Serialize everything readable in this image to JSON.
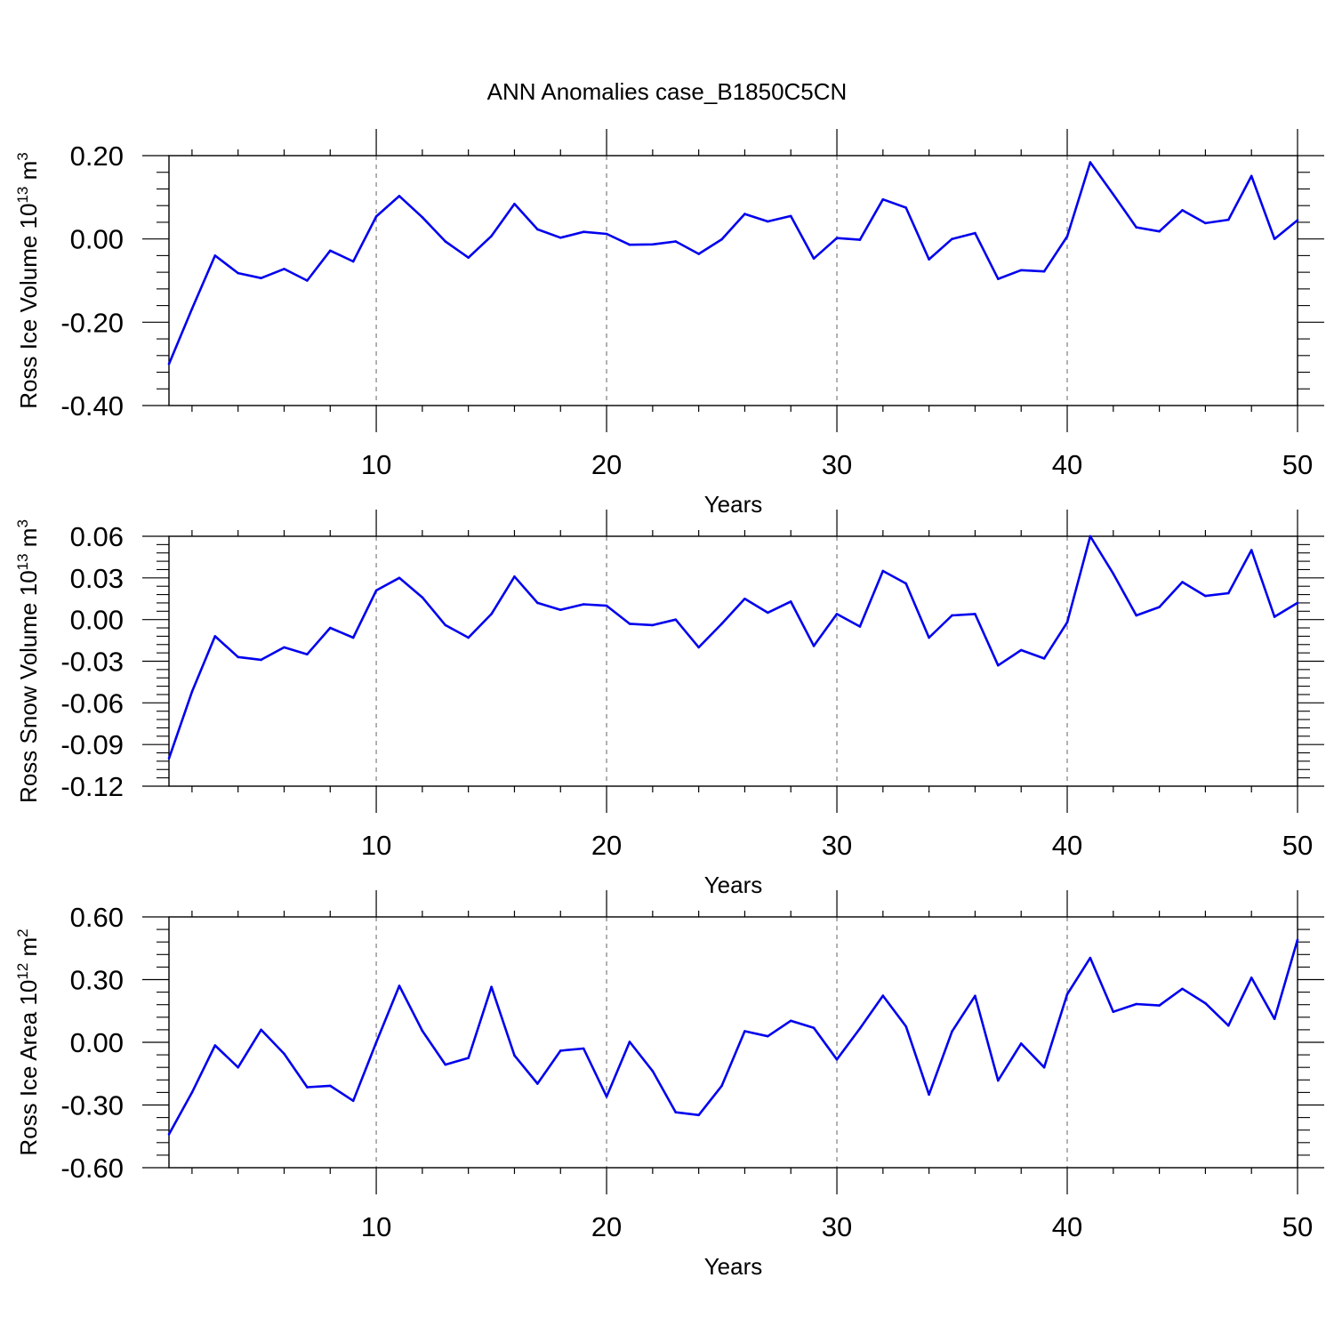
{
  "figure_title": "ANN Anomalies case_B1850C5CN",
  "line_color": "#0000ee",
  "chart_data": [
    {
      "type": "line",
      "ylabel_main": "Ross Ice Volume 10",
      "ylabel_exp": "13",
      "ylabel_unit": " m",
      "ylabel_unit_exp": "3",
      "xlabel": "Years",
      "xlim": [
        1,
        50
      ],
      "ylim": [
        -0.4,
        0.2
      ],
      "yticks": [
        -0.4,
        -0.2,
        0.0,
        0.2
      ],
      "ytick_labels": [
        "-0.40",
        "-0.20",
        "0.00",
        "0.20"
      ],
      "xticks": [
        10,
        20,
        30,
        40,
        50
      ],
      "xtick_labels": [
        "10",
        "20",
        "30",
        "40",
        "50"
      ],
      "grid": "dashed vertical lines at x=10,20,30,40",
      "x": [
        1,
        2,
        3,
        4,
        5,
        6,
        7,
        8,
        9,
        10,
        11,
        12,
        13,
        14,
        15,
        16,
        17,
        18,
        19,
        20,
        21,
        22,
        23,
        24,
        25,
        26,
        27,
        28,
        29,
        30,
        31,
        32,
        33,
        34,
        35,
        36,
        37,
        38,
        39,
        40,
        41,
        42,
        43,
        44,
        45,
        46,
        47,
        48,
        49,
        50
      ],
      "values": [
        -0.3,
        -0.168,
        -0.04,
        -0.082,
        -0.094,
        -0.072,
        -0.1,
        -0.028,
        -0.054,
        0.054,
        0.103,
        0.052,
        -0.006,
        -0.045,
        0.007,
        0.084,
        0.023,
        0.003,
        0.017,
        0.012,
        -0.014,
        -0.013,
        -0.006,
        -0.036,
        -0.001,
        0.06,
        0.042,
        0.055,
        -0.047,
        0.002,
        -0.002,
        0.095,
        0.075,
        -0.049,
        0.0,
        0.014,
        -0.096,
        -0.075,
        -0.078,
        0.006,
        0.184,
        0.107,
        0.028,
        0.018,
        0.069,
        0.038,
        0.046,
        0.151,
        0.0,
        0.045
      ]
    },
    {
      "type": "line",
      "ylabel_main": "Ross Snow Volume 10",
      "ylabel_exp": "13",
      "ylabel_unit": " m",
      "ylabel_unit_exp": "3",
      "xlabel": "Years",
      "xlim": [
        1,
        50
      ],
      "ylim": [
        -0.12,
        0.06
      ],
      "yticks": [
        -0.12,
        -0.09,
        -0.06,
        -0.03,
        0.0,
        0.03,
        0.06
      ],
      "ytick_labels": [
        "-0.12",
        "-0.09",
        "-0.06",
        "-0.03",
        "0.00",
        "0.03",
        "0.06"
      ],
      "xticks": [
        10,
        20,
        30,
        40,
        50
      ],
      "xtick_labels": [
        "10",
        "20",
        "30",
        "40",
        "50"
      ],
      "grid": "dashed vertical lines at x=10,20,30,40",
      "x": [
        1,
        2,
        3,
        4,
        5,
        6,
        7,
        8,
        9,
        10,
        11,
        12,
        13,
        14,
        15,
        16,
        17,
        18,
        19,
        20,
        21,
        22,
        23,
        24,
        25,
        26,
        27,
        28,
        29,
        30,
        31,
        32,
        33,
        34,
        35,
        36,
        37,
        38,
        39,
        40,
        41,
        42,
        43,
        44,
        45,
        46,
        47,
        48,
        49,
        50
      ],
      "values": [
        -0.1,
        -0.052,
        -0.012,
        -0.027,
        -0.029,
        -0.02,
        -0.025,
        -0.006,
        -0.013,
        0.021,
        0.03,
        0.016,
        -0.004,
        -0.013,
        0.004,
        0.031,
        0.012,
        0.007,
        0.011,
        0.01,
        -0.003,
        -0.004,
        0.0,
        -0.02,
        -0.003,
        0.015,
        0.005,
        0.013,
        -0.019,
        0.004,
        -0.005,
        0.035,
        0.026,
        -0.013,
        0.003,
        0.004,
        -0.033,
        -0.022,
        -0.028,
        -0.002,
        0.06,
        0.033,
        0.003,
        0.009,
        0.027,
        0.017,
        0.019,
        0.05,
        0.002,
        0.012
      ]
    },
    {
      "type": "line",
      "ylabel_main": "Ross Ice Area 10",
      "ylabel_exp": "12",
      "ylabel_unit": " m",
      "ylabel_unit_exp": "2",
      "xlabel": "Years",
      "xlim": [
        1,
        50
      ],
      "ylim": [
        -0.6,
        0.6
      ],
      "yticks": [
        -0.6,
        -0.3,
        0.0,
        0.3,
        0.6
      ],
      "ytick_labels": [
        "-0.60",
        "-0.30",
        "0.00",
        "0.30",
        "0.60"
      ],
      "xticks": [
        10,
        20,
        30,
        40,
        50
      ],
      "xtick_labels": [
        "10",
        "20",
        "30",
        "40",
        "50"
      ],
      "grid": "dashed vertical lines at x=10,20,30,40",
      "x": [
        1,
        2,
        3,
        4,
        5,
        6,
        7,
        8,
        9,
        10,
        11,
        12,
        13,
        14,
        15,
        16,
        17,
        18,
        19,
        20,
        21,
        22,
        23,
        24,
        25,
        26,
        27,
        28,
        29,
        30,
        31,
        32,
        33,
        34,
        35,
        36,
        37,
        38,
        39,
        40,
        41,
        42,
        43,
        44,
        45,
        46,
        47,
        48,
        49,
        50
      ],
      "values": [
        -0.44,
        -0.24,
        -0.015,
        -0.12,
        0.06,
        -0.055,
        -0.215,
        -0.208,
        -0.28,
        0.0,
        0.27,
        0.055,
        -0.107,
        -0.075,
        0.265,
        -0.063,
        -0.198,
        -0.04,
        -0.03,
        -0.26,
        0.002,
        -0.138,
        -0.335,
        -0.348,
        -0.208,
        0.053,
        0.029,
        0.103,
        0.069,
        -0.082,
        0.066,
        0.223,
        0.076,
        -0.25,
        0.052,
        0.222,
        -0.183,
        -0.006,
        -0.12,
        0.23,
        0.404,
        0.146,
        0.183,
        0.176,
        0.256,
        0.187,
        0.08,
        0.309,
        0.112,
        0.49
      ]
    }
  ]
}
